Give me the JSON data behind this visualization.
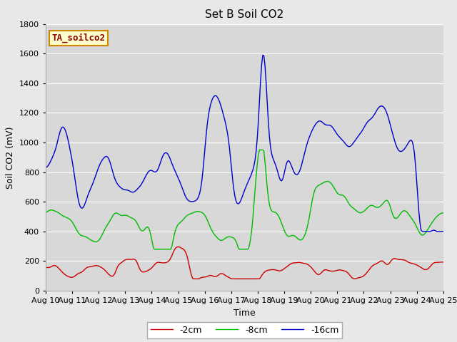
{
  "title": "Set B Soil CO2",
  "xlabel": "Time",
  "ylabel": "Soil CO2 (mV)",
  "ylim": [
    0,
    1800
  ],
  "yticks": [
    0,
    200,
    400,
    600,
    800,
    1000,
    1200,
    1400,
    1600,
    1800
  ],
  "xtick_labels": [
    "Aug 10",
    "Aug 11",
    "Aug 12",
    "Aug 13",
    "Aug 14",
    "Aug 15",
    "Aug 16",
    "Aug 17",
    "Aug 18",
    "Aug 19",
    "Aug 20",
    "Aug 21",
    "Aug 22",
    "Aug 23",
    "Aug 24",
    "Aug 25"
  ],
  "legend_entries": [
    "-2cm",
    "-8cm",
    "-16cm"
  ],
  "line_colors": [
    "#cc0000",
    "#00bb00",
    "#0000cc"
  ],
  "background_color": "#e8e8e8",
  "plot_bg_color": "#d8d8d8",
  "annotation_text": "TA_soilco2",
  "annotation_bg": "#ffffcc",
  "annotation_border": "#cc8800",
  "annotation_text_color": "#880000",
  "title_fontsize": 11,
  "axis_label_fontsize": 9,
  "tick_fontsize": 8,
  "legend_fontsize": 9
}
